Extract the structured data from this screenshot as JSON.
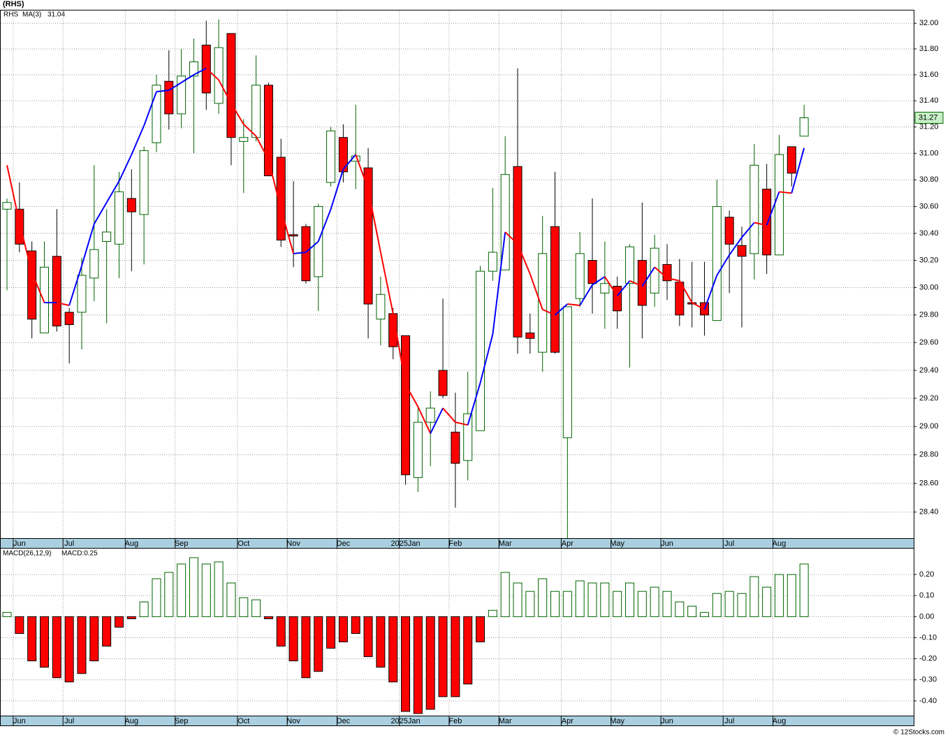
{
  "chart_data": [
    {
      "type": "candlestick",
      "title": "(RHS)",
      "symbol": "RHS",
      "categories": [
        null,
        "Jun",
        null,
        null,
        null,
        "Jul",
        null,
        null,
        null,
        null,
        "Aug",
        null,
        null,
        null,
        "Sep",
        null,
        null,
        null,
        null,
        "Oct",
        null,
        null,
        null,
        "Nov",
        null,
        null,
        null,
        "Dec",
        null,
        null,
        null,
        null,
        "2025Jan",
        null,
        null,
        null,
        "Feb",
        null,
        null,
        null,
        "Mar",
        null,
        null,
        null,
        null,
        "Apr",
        null,
        null,
        null,
        "May",
        null,
        null,
        null,
        "Jun",
        null,
        null,
        null,
        null,
        "Jul",
        null,
        null,
        null,
        "Aug",
        null,
        null
      ],
      "open": [
        30.58,
        30.58,
        30.27,
        29.67,
        30.23,
        29.82,
        29.82,
        30.07,
        30.34,
        30.32,
        30.66,
        30.54,
        31.08,
        31.55,
        31.3,
        31.59,
        31.83,
        31.38,
        31.92,
        31.09,
        31.12,
        31.52,
        30.97,
        30.39,
        30.45,
        30.08,
        30.78,
        31.12,
        30.94,
        30.89,
        29.77,
        29.81,
        29.65,
        28.64,
        29.03,
        29.4,
        28.96,
        28.76,
        28.97,
        30.12,
        30.13,
        30.9,
        29.67,
        29.53,
        30.45,
        28.92,
        29.92,
        30.2,
        29.96,
        30.01,
        30.03,
        30.2,
        29.96,
        30.17,
        30.04,
        29.89,
        29.89,
        29.76,
        30.52,
        30.31,
        30.25,
        30.73,
        30.24,
        31.05,
        31.13
      ],
      "high": [
        30.66,
        30.78,
        30.34,
        30.34,
        30.58,
        29.85,
        30.22,
        30.91,
        30.58,
        30.86,
        30.88,
        31.05,
        31.6,
        31.79,
        31.8,
        31.88,
        32.02,
        32.03,
        31.92,
        31.26,
        31.75,
        31.54,
        31.11,
        30.79,
        30.47,
        30.62,
        31.2,
        31.22,
        31.37,
        31.04,
        30.08,
        29.85,
        29.65,
        29.15,
        29.25,
        29.92,
        29.24,
        29.39,
        30.16,
        30.74,
        31.13,
        31.65,
        29.81,
        30.53,
        30.86,
        29.86,
        30.41,
        30.66,
        30.34,
        30.08,
        30.32,
        30.63,
        30.39,
        30.32,
        30.21,
        30.19,
        30.19,
        30.8,
        30.57,
        30.45,
        31.07,
        30.92,
        31.14,
        31.05,
        31.37
      ],
      "low": [
        29.98,
        30.26,
        29.63,
        29.67,
        29.68,
        29.45,
        29.55,
        29.9,
        29.74,
        30.07,
        30.12,
        30.17,
        31.01,
        31.18,
        31.19,
        31.0,
        31.33,
        31.3,
        30.91,
        30.7,
        31.09,
        30.83,
        30.3,
        30.15,
        30.03,
        29.83,
        30.75,
        30.78,
        30.73,
        29.63,
        29.58,
        29.48,
        28.59,
        28.54,
        28.72,
        29.2,
        28.43,
        28.62,
        28.97,
        30.05,
        30.13,
        29.52,
        29.52,
        29.39,
        29.52,
        28.22,
        29.86,
        29.81,
        29.7,
        29.7,
        29.42,
        29.63,
        29.86,
        29.91,
        29.72,
        29.71,
        29.65,
        29.76,
        29.96,
        29.71,
        30.06,
        30.1,
        30.24,
        30.75,
        31.13
      ],
      "close": [
        30.63,
        30.32,
        29.77,
        30.15,
        29.72,
        29.73,
        30.09,
        30.28,
        30.41,
        30.71,
        30.56,
        31.02,
        31.52,
        31.3,
        31.59,
        31.7,
        31.46,
        31.81,
        31.12,
        31.12,
        31.52,
        30.83,
        30.35,
        30.38,
        30.05,
        30.6,
        31.17,
        30.86,
        30.98,
        29.88,
        29.95,
        29.57,
        28.66,
        29.03,
        29.13,
        29.22,
        28.74,
        29.09,
        30.12,
        30.26,
        30.84,
        29.64,
        29.63,
        30.25,
        29.53,
        29.86,
        30.25,
        30.03,
        30.03,
        29.83,
        30.3,
        29.87,
        30.29,
        30.05,
        29.8,
        29.88,
        29.8,
        30.6,
        30.32,
        30.23,
        30.91,
        30.24,
        30.99,
        30.85,
        31.27
      ],
      "up_color": "#ffffff",
      "up_edge_color": "#006400",
      "down_color": "#ff0000",
      "down_edge_color": "#000000",
      "series": [
        {
          "name": "MA(3)",
          "up_color": "#0000ff",
          "down_color": "#ff0000",
          "values": [
            30.91,
            30.48,
            30.11,
            29.89,
            29.89,
            29.87,
            30.16,
            30.47,
            30.63,
            30.79,
            30.99,
            31.21,
            31.47,
            31.48,
            31.54,
            31.6,
            31.65,
            31.56,
            31.38,
            31.22,
            31.13,
            30.95,
            30.58,
            30.25,
            30.26,
            30.34,
            30.58,
            30.88,
            30.99,
            30.73,
            30.26,
            29.81,
            29.3,
            29.14,
            28.95,
            29.13,
            29.03,
            29.01,
            29.31,
            29.66,
            30.41,
            30.32,
            30.1,
            29.84,
            29.8,
            29.88,
            29.87,
            30.02,
            30.08,
            29.94,
            30.05,
            30.01,
            30.15,
            30.07,
            30.05,
            29.89,
            29.84,
            30.09,
            30.24,
            30.37,
            30.48,
            30.46,
            30.71,
            30.7,
            31.04
          ]
        }
      ],
      "log_scale": true,
      "grid": true,
      "ylim": [
        28.22,
        32.1
      ],
      "yticks": [
        {
          "value": 28.4,
          "label": "28.40"
        },
        {
          "value": 28.6,
          "label": "28.60"
        },
        {
          "value": 28.8,
          "label": "28.80"
        },
        {
          "value": 29.0,
          "label": "29.00"
        },
        {
          "value": 29.2,
          "label": "29.20"
        },
        {
          "value": 29.4,
          "label": "29.40"
        },
        {
          "value": 29.6,
          "label": "29.60"
        },
        {
          "value": 29.8,
          "label": "29.80"
        },
        {
          "value": 30.0,
          "label": "30.00"
        },
        {
          "value": 30.2,
          "label": "30.20"
        },
        {
          "value": 30.4,
          "label": "30.40"
        },
        {
          "value": 30.6,
          "label": "30.60"
        },
        {
          "value": 30.8,
          "label": "30.80"
        },
        {
          "value": 31.0,
          "label": "31.00"
        },
        {
          "value": 31.2,
          "label": "31.20"
        },
        {
          "value": 31.4,
          "label": "31.40"
        },
        {
          "value": 31.6,
          "label": "31.60"
        },
        {
          "value": 31.8,
          "label": "31.80"
        },
        {
          "value": 32.0,
          "label": "32.00"
        }
      ]
    },
    {
      "type": "histogram",
      "legend": "MACD(26,12,9)",
      "value_legend": "MACD:0.25",
      "categories": [
        null,
        "Jun",
        null,
        null,
        null,
        "Jul",
        null,
        null,
        null,
        null,
        "Aug",
        null,
        null,
        null,
        "Sep",
        null,
        null,
        null,
        null,
        "Oct",
        null,
        null,
        null,
        "Nov",
        null,
        null,
        null,
        "Dec",
        null,
        null,
        null,
        null,
        "2025Jan",
        null,
        null,
        null,
        "Feb",
        null,
        null,
        null,
        "Mar",
        null,
        null,
        null,
        null,
        "Apr",
        null,
        null,
        null,
        "May",
        null,
        null,
        null,
        "Jun",
        null,
        null,
        null,
        null,
        "Jul",
        null,
        null,
        null,
        "Aug",
        null,
        null
      ],
      "values": [
        0.02,
        -0.08,
        -0.21,
        -0.24,
        -0.29,
        -0.31,
        -0.27,
        -0.21,
        -0.14,
        -0.05,
        -0.01,
        0.07,
        0.18,
        0.21,
        0.25,
        0.28,
        0.25,
        0.26,
        0.16,
        0.09,
        0.08,
        -0.01,
        -0.14,
        -0.21,
        -0.29,
        -0.26,
        -0.15,
        -0.12,
        -0.08,
        -0.19,
        -0.24,
        -0.31,
        -0.45,
        -0.46,
        -0.44,
        -0.38,
        -0.38,
        -0.32,
        -0.12,
        0.03,
        0.21,
        0.16,
        0.12,
        0.18,
        0.12,
        0.12,
        0.17,
        0.16,
        0.16,
        0.12,
        0.16,
        0.12,
        0.14,
        0.12,
        0.07,
        0.05,
        0.02,
        0.11,
        0.12,
        0.11,
        0.19,
        0.14,
        0.2,
        0.2,
        0.25
      ],
      "pos_color": "#ffffff",
      "pos_edge_color": "#006400",
      "neg_color": "#ff0000",
      "neg_edge_color": "#000000",
      "grid": true,
      "ylim": [
        -0.47,
        0.323
      ],
      "yticks": [
        {
          "value": -0.4,
          "label": "-0.40"
        },
        {
          "value": -0.3,
          "label": "-0.30"
        },
        {
          "value": -0.2,
          "label": "-0.20"
        },
        {
          "value": -0.1,
          "label": "-0.10"
        },
        {
          "value": 0,
          "label": "0.00"
        },
        {
          "value": 0.1,
          "label": "0.10"
        },
        {
          "value": 0.2,
          "label": "0.20"
        }
      ]
    }
  ],
  "watermark": "© 12Stocks.com"
}
